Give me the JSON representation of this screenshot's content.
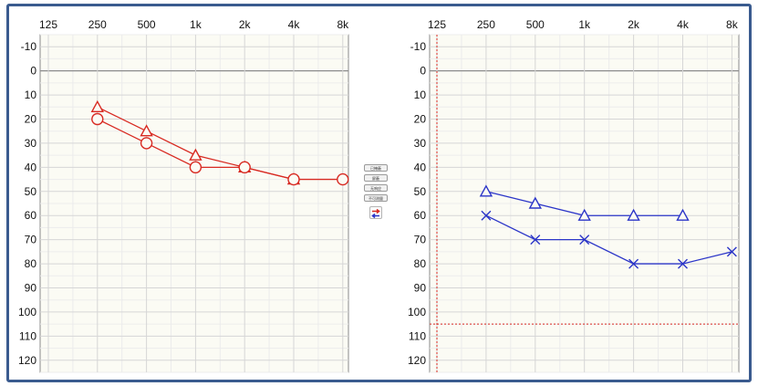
{
  "controls": {
    "buttons": [
      "已掩蔽",
      "屏蔽",
      "无响应",
      "不可测量"
    ]
  },
  "colors": {
    "frame": "#3a5b8f",
    "plot_bg": "#fbfbf4",
    "grid": "#d6d6d6",
    "right_ear": "#d82a22",
    "left_ear": "#2b35c8"
  },
  "chart_data": [
    {
      "type": "line",
      "ear": "right",
      "x": [
        "125",
        "250",
        "500",
        "1k",
        "2k",
        "4k",
        "8k"
      ],
      "y_ticks": [
        -10,
        0,
        10,
        20,
        30,
        40,
        50,
        60,
        70,
        80,
        90,
        100,
        110,
        120
      ],
      "ylim": [
        -15,
        125
      ],
      "y_inverted": true,
      "grid": true,
      "color": "#d82a22",
      "series": [
        {
          "symbol": "triangle",
          "values": [
            null,
            15,
            25,
            35,
            40,
            45,
            null
          ]
        },
        {
          "symbol": "circle",
          "values": [
            null,
            20,
            30,
            40,
            40,
            45,
            45
          ]
        }
      ],
      "reference_lines": []
    },
    {
      "type": "line",
      "ear": "left",
      "x": [
        "125",
        "250",
        "500",
        "1k",
        "2k",
        "4k",
        "8k"
      ],
      "y_ticks": [
        -10,
        0,
        10,
        20,
        30,
        40,
        50,
        60,
        70,
        80,
        90,
        100,
        110,
        120
      ],
      "ylim": [
        -15,
        125
      ],
      "y_inverted": true,
      "grid": true,
      "color": "#2b35c8",
      "series": [
        {
          "symbol": "triangle",
          "values": [
            null,
            50,
            55,
            60,
            60,
            60,
            null
          ]
        },
        {
          "symbol": "cross",
          "values": [
            null,
            60,
            70,
            70,
            80,
            80,
            75
          ]
        }
      ],
      "reference_lines": [
        {
          "axis": "x",
          "category": "125",
          "color": "#d82a22",
          "style": "dotted"
        },
        {
          "axis": "y",
          "value": 105,
          "color": "#d82a22",
          "style": "dotted"
        }
      ]
    }
  ]
}
